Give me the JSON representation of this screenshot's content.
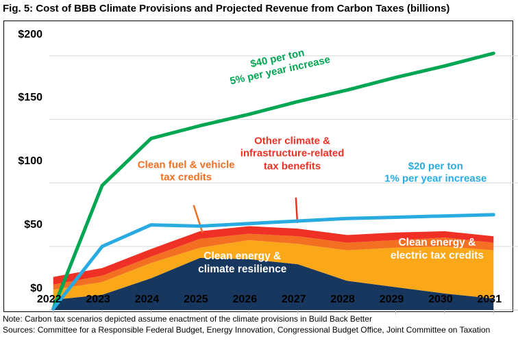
{
  "title": "Fig. 5: Cost of BBB Climate Provisions and Projected Revenue from Carbon Taxes (billions)",
  "notes": {
    "note": "Note: Carbon tax scenarios depicted assume enactment of the climate provisions in Build Back Better",
    "sources": "Sources: Committee for a Responsible Federal Budget, Energy Innovation, Congressional Budget Office, Joint Committee on Taxation"
  },
  "colors": {
    "grid": "#D9D9D9",
    "tick": "#BFBFBF",
    "border": "#000000",
    "background": "#FFFFFF"
  },
  "chart_data": {
    "type": "area",
    "stacked": true,
    "title": "Fig. 5: Cost of BBB Climate Provisions and Projected Revenue from Carbon Taxes (billions)",
    "xlabel": "",
    "ylabel": "",
    "grid": true,
    "legend_position": "none (in-plot annotations)",
    "x": [
      2022,
      2023,
      2024,
      2025,
      2026,
      2027,
      2028,
      2029,
      2030,
      2031
    ],
    "x_tick_labels": [
      "2022",
      "2023",
      "2024",
      "2025",
      "2026",
      "2027",
      "2028",
      "2029",
      "2030",
      "2031"
    ],
    "y_ticks": [
      0,
      50,
      100,
      150,
      200
    ],
    "y_tick_labels": [
      "$0",
      "$50",
      "$100",
      "$150",
      "$200"
    ],
    "ylim": [
      0,
      210
    ],
    "stacked_series": [
      {
        "id": "clean-energy-climate-resilience",
        "name": "Clean energy & climate resilience",
        "color": "#17375E",
        "values": [
          8,
          12,
          25,
          41,
          40,
          36,
          23,
          18,
          13,
          9
        ]
      },
      {
        "id": "clean-energy-electric-tax-credits",
        "name": "Clean energy & electric tax credits",
        "color": "#FAA819",
        "values": [
          8,
          10,
          12,
          8,
          15,
          16,
          24,
          31,
          37,
          38
        ]
      },
      {
        "id": "clean-fuel-vehicle-tax-credits",
        "name": "Clean fuel & vehicle tax credits",
        "color": "#F36F21",
        "values": [
          4,
          5,
          5,
          7,
          5,
          6,
          6,
          6,
          7,
          6
        ]
      },
      {
        "id": "other-climate-infrastructure-tax-benefits",
        "name": "Other climate & infrastructure-related tax benefits",
        "color": "#EE3124",
        "values": [
          6,
          6,
          6,
          6,
          6,
          6,
          6,
          6,
          5,
          5
        ]
      }
    ],
    "line_series": [
      {
        "id": "carbon-tax-40-per-ton",
        "name": "$40 per ton, 5% per year increase",
        "color": "#00A651",
        "values": [
          1,
          98,
          135,
          145,
          154,
          164,
          173,
          183,
          192,
          202
        ]
      },
      {
        "id": "carbon-tax-20-per-ton",
        "name": "$20 per ton, 1% per year increase",
        "color": "#29ABE2",
        "values": [
          1,
          50,
          67,
          66,
          68,
          70,
          72,
          73,
          74,
          75
        ]
      }
    ],
    "annotations": [
      {
        "id": "label-40-per-ton",
        "lines": [
          "$40 per ton",
          "5% per year increase"
        ],
        "color": "#00A651",
        "x": 2026.7,
        "y": 176,
        "rotate": -12.5,
        "style": "callout"
      },
      {
        "id": "label-20-per-ton",
        "lines": [
          "$20 per ton",
          "1% per year increase"
        ],
        "color": "#29ABE2",
        "x": 2029.9,
        "y": 91,
        "rotate": 0,
        "style": "callout"
      },
      {
        "id": "label-clean-fuel-vehicle",
        "lines": [
          "Clean fuel & vehicle",
          "tax credits"
        ],
        "color": "#F36F21",
        "x": 2024.8,
        "y": 92,
        "rotate": 0,
        "style": "callout",
        "leader": [
          2024.87,
          82.5,
          2025.05,
          61
        ]
      },
      {
        "id": "label-other-climate",
        "lines": [
          "Other climate &",
          "infrastructure-related",
          "tax benefits"
        ],
        "color": "#EE3124",
        "x": 2026.97,
        "y": 106,
        "rotate": 0,
        "style": "callout",
        "leader": [
          2026.96,
          88.5,
          2026.99,
          68.5
        ]
      },
      {
        "id": "label-climate-resilience",
        "lines": [
          "Clean energy &",
          "climate resilience"
        ],
        "color": "#FFFFFF",
        "x": 2025.95,
        "y": 20,
        "rotate": 0,
        "style": "area-label"
      },
      {
        "id": "label-electric-tax-credits",
        "lines": [
          "Clean energy &",
          "electric tax credits"
        ],
        "color": "#FFFFFF",
        "x": 2029.93,
        "y": 30.5,
        "rotate": 0,
        "style": "area-label"
      }
    ]
  }
}
